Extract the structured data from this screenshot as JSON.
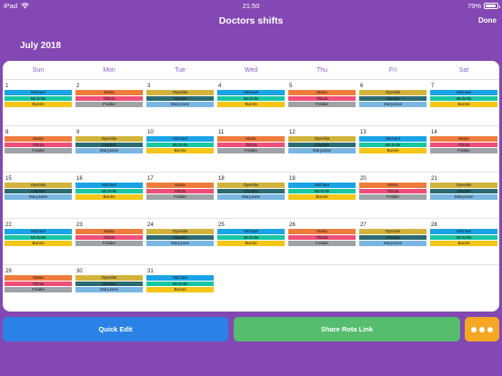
{
  "status": {
    "carrier": "iPad",
    "time": "21:50",
    "battery": "79%"
  },
  "nav": {
    "title": "Doctors shifts",
    "done": "Done"
  },
  "month": "July 2018",
  "weekdays": [
    "Sun",
    "Mon",
    "Tue",
    "Wed",
    "Thu",
    "Fri",
    "Sat"
  ],
  "colors": {
    "Michael": "#1aa3e6",
    "Michelle": "#19c7a3",
    "Bunmi": "#f5c518",
    "Maria": "#f07c3c",
    "Titilola": "#ee4f78",
    "Folake": "#9ea3a8",
    "Oyenike": "#d2b43c",
    "Oladele": "#2b6b72",
    "MaryJane": "#7ab6e2"
  },
  "weeks": [
    [
      {
        "day": "1",
        "shifts": [
          "Michael",
          "Michelle",
          "Bunmi"
        ]
      },
      {
        "day": "2",
        "shifts": [
          "Maria",
          "Titilola",
          "Folake"
        ]
      },
      {
        "day": "3",
        "shifts": [
          "Oyenike",
          "Oladele",
          "MaryJane"
        ]
      },
      {
        "day": "4",
        "shifts": [
          "Michael",
          "Michelle",
          "Bunmi"
        ]
      },
      {
        "day": "5",
        "shifts": [
          "Maria",
          "Titilola",
          "Folake"
        ]
      },
      {
        "day": "6",
        "shifts": [
          "Oyenike",
          "Oladele",
          "MaryJane"
        ]
      },
      {
        "day": "7",
        "shifts": [
          "Michael",
          "Michelle",
          "Bunmi"
        ]
      }
    ],
    [
      {
        "day": "8",
        "shifts": [
          "Maria",
          "Titilola",
          "Folake"
        ]
      },
      {
        "day": "9",
        "shifts": [
          "Oyenike",
          "Oladele",
          "MaryJane"
        ]
      },
      {
        "day": "10",
        "shifts": [
          "Michael",
          "Michelle",
          "Bunmi"
        ]
      },
      {
        "day": "11",
        "shifts": [
          "Maria",
          "Titilola",
          "Folake"
        ]
      },
      {
        "day": "12",
        "shifts": [
          "Oyenike",
          "Oladele",
          "MaryJane"
        ]
      },
      {
        "day": "13",
        "shifts": [
          "Michael",
          "Michelle",
          "Bunmi"
        ]
      },
      {
        "day": "14",
        "shifts": [
          "Maria",
          "Titilola",
          "Folake"
        ]
      }
    ],
    [
      {
        "day": "15",
        "shifts": [
          "Oyenike",
          "Oladele",
          "MaryJane"
        ]
      },
      {
        "day": "16",
        "shifts": [
          "Michael",
          "Michelle",
          "Bunmi"
        ]
      },
      {
        "day": "17",
        "shifts": [
          "Maria",
          "Titilola",
          "Folake"
        ]
      },
      {
        "day": "18",
        "shifts": [
          "Oyenike",
          "Oladele",
          "MaryJane"
        ]
      },
      {
        "day": "19",
        "shifts": [
          "Michael",
          "Michelle",
          "Bunmi"
        ]
      },
      {
        "day": "20",
        "shifts": [
          "Maria",
          "Titilola",
          "Folake"
        ]
      },
      {
        "day": "21",
        "shifts": [
          "Oyenike",
          "Oladele",
          "MaryJane"
        ]
      }
    ],
    [
      {
        "day": "22",
        "shifts": [
          "Michael",
          "Michelle",
          "Bunmi"
        ]
      },
      {
        "day": "23",
        "shifts": [
          "Maria",
          "Titilola",
          "Folake"
        ]
      },
      {
        "day": "24",
        "shifts": [
          "Oyenike",
          "Oladele",
          "MaryJane"
        ]
      },
      {
        "day": "25",
        "shifts": [
          "Michael",
          "Michelle",
          "Bunmi"
        ]
      },
      {
        "day": "26",
        "shifts": [
          "Maria",
          "Titilola",
          "Folake"
        ]
      },
      {
        "day": "27",
        "shifts": [
          "Oyenike",
          "Oladele",
          "MaryJane"
        ]
      },
      {
        "day": "28",
        "shifts": [
          "Michael",
          "Michelle",
          "Bunmi"
        ]
      }
    ],
    [
      {
        "day": "29",
        "shifts": [
          "Maria",
          "Titilola",
          "Folake"
        ]
      },
      {
        "day": "30",
        "shifts": [
          "Oyenike",
          "Oladele",
          "MaryJane"
        ]
      },
      {
        "day": "31",
        "shifts": [
          "Michael",
          "Michelle",
          "Bunmi"
        ]
      },
      null,
      null,
      null,
      null
    ]
  ],
  "actions": {
    "quick_edit": "Quick Edit",
    "share": "Share Rota Link",
    "more_icon": "ellipsis-icon"
  },
  "accent": {
    "background": "#8348b3",
    "quick_edit": "#2b82e6",
    "share": "#55bd6d",
    "more": "#f5a623"
  }
}
